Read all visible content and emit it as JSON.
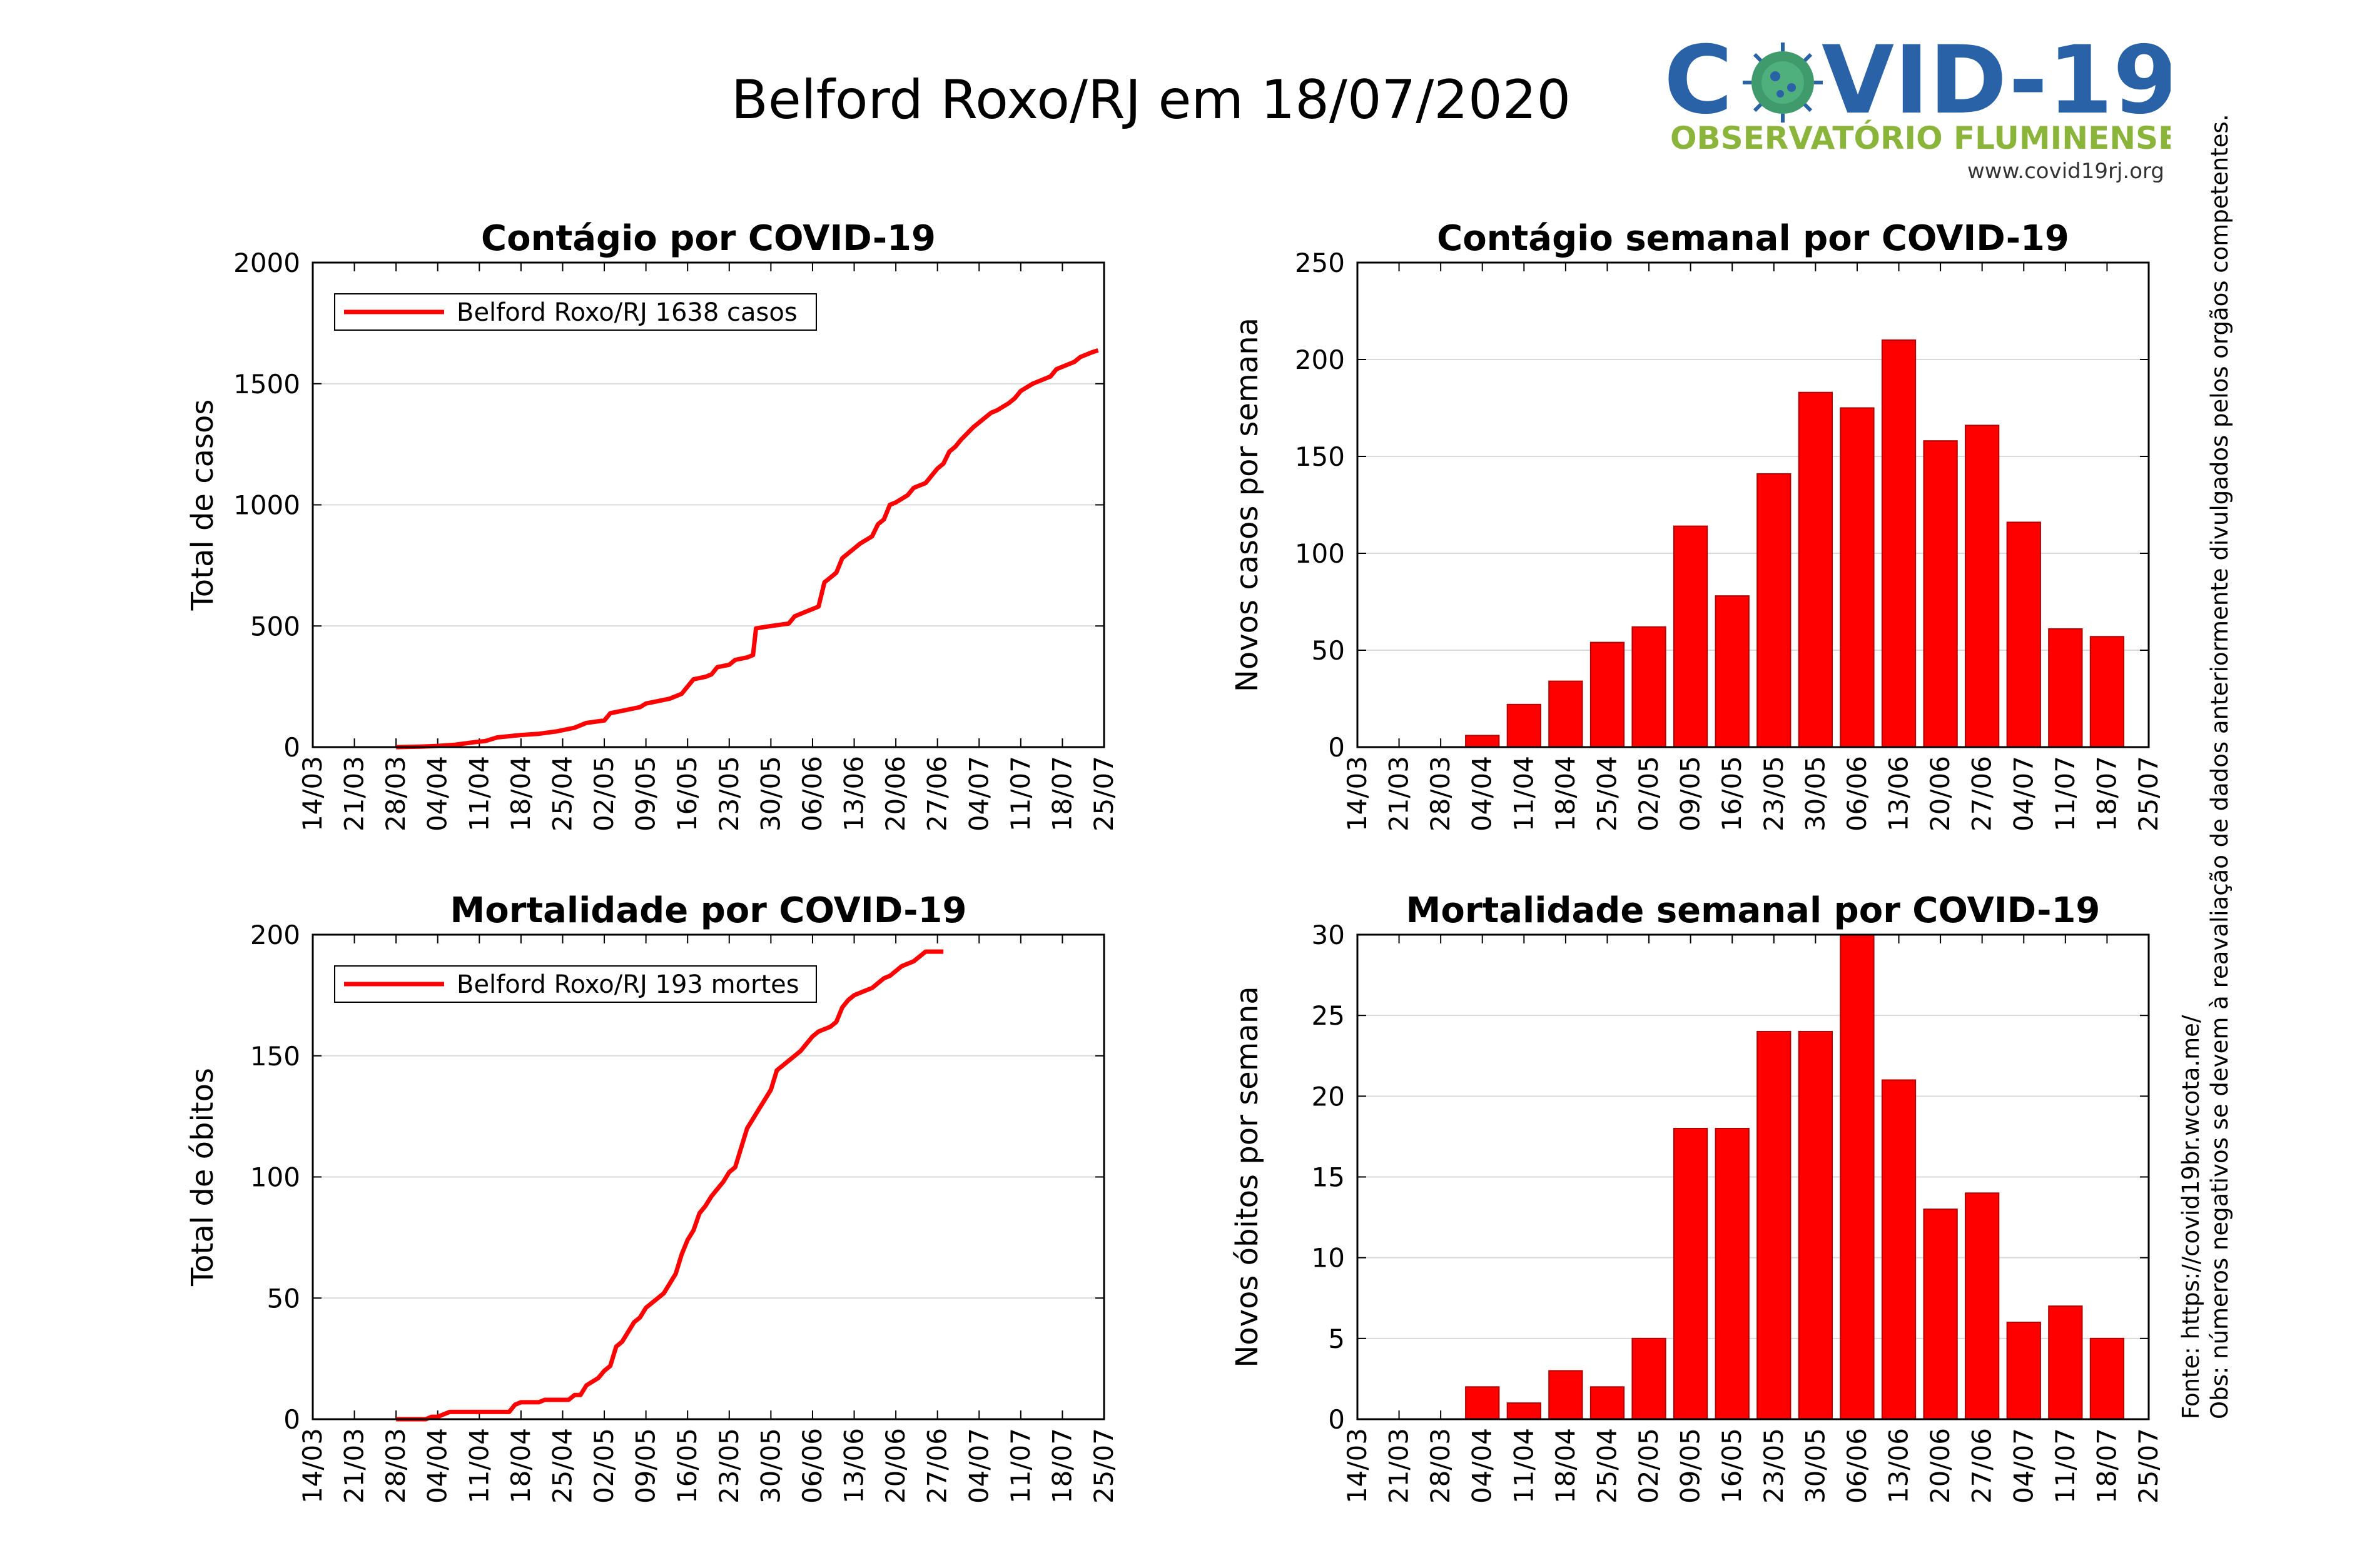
{
  "page": {
    "title": "Belford Roxo/RJ em 18/07/2020"
  },
  "logo": {
    "brand_left": "C",
    "brand_right": "VID-19",
    "subtitle": "OBSERVATÓRIO FLUMINENSE",
    "url": "www.covid19rj.org",
    "colors": {
      "blue": "#2a62a8",
      "green": "#8ab43a",
      "virus": "#3f9a6c"
    }
  },
  "side_note": {
    "source": "Fonte: https://covid19br.wcota.me/",
    "observation": "Obs: números negativos se devem à reavaliação de dados anteriormente divulgados pelos orgãos competentes."
  },
  "colors": {
    "series": "#ff0000",
    "bar_edge": "#b00000",
    "grid": "#d9d9d9"
  },
  "chart_data": [
    {
      "type": "line",
      "title": "Contágio por COVID-19",
      "ylabel": "Total de casos",
      "xlabel": "",
      "legend": {
        "label": "Belford Roxo/RJ  1638 casos",
        "position": "top-left"
      },
      "xticks": [
        "14/03",
        "21/03",
        "28/03",
        "04/04",
        "11/04",
        "18/04",
        "25/04",
        "02/05",
        "09/05",
        "16/05",
        "23/05",
        "30/05",
        "06/06",
        "13/06",
        "20/06",
        "27/06",
        "04/07",
        "11/07",
        "18/07",
        "25/07"
      ],
      "xlim": [
        0,
        133
      ],
      "ylim": [
        0,
        2000
      ],
      "yticks": [
        0,
        500,
        1000,
        1500,
        2000
      ],
      "grid": true,
      "series": [
        {
          "name": "Belford Roxo/RJ",
          "points": [
            [
              14,
              0
            ],
            [
              18,
              2
            ],
            [
              21,
              5
            ],
            [
              24,
              10
            ],
            [
              27,
              20
            ],
            [
              29,
              25
            ],
            [
              31,
              40
            ],
            [
              35,
              50
            ],
            [
              38,
              55
            ],
            [
              41,
              65
            ],
            [
              44,
              80
            ],
            [
              46,
              100
            ],
            [
              49,
              110
            ],
            [
              50,
              140
            ],
            [
              52,
              150
            ],
            [
              55,
              165
            ],
            [
              56,
              180
            ],
            [
              58,
              190
            ],
            [
              60,
              200
            ],
            [
              62,
              220
            ],
            [
              63,
              250
            ],
            [
              64,
              280
            ],
            [
              66,
              290
            ],
            [
              67,
              300
            ],
            [
              68,
              330
            ],
            [
              70,
              340
            ],
            [
              71,
              360
            ],
            [
              73,
              370
            ],
            [
              74,
              380
            ],
            [
              74.5,
              490
            ],
            [
              77,
              500
            ],
            [
              80,
              510
            ],
            [
              81,
              540
            ],
            [
              83,
              560
            ],
            [
              85,
              580
            ],
            [
              86,
              680
            ],
            [
              87,
              700
            ],
            [
              88,
              720
            ],
            [
              89,
              780
            ],
            [
              91,
              820
            ],
            [
              92,
              840
            ],
            [
              94,
              870
            ],
            [
              95,
              920
            ],
            [
              96,
              940
            ],
            [
              97,
              1000
            ],
            [
              98,
              1010
            ],
            [
              100,
              1040
            ],
            [
              101,
              1070
            ],
            [
              103,
              1090
            ],
            [
              104,
              1120
            ],
            [
              105,
              1150
            ],
            [
              106,
              1170
            ],
            [
              107,
              1220
            ],
            [
              108,
              1240
            ],
            [
              109,
              1270
            ],
            [
              111,
              1320
            ],
            [
              113,
              1360
            ],
            [
              114,
              1380
            ],
            [
              115,
              1390
            ],
            [
              117,
              1420
            ],
            [
              118,
              1440
            ],
            [
              119,
              1470
            ],
            [
              121,
              1500
            ],
            [
              123,
              1520
            ],
            [
              124,
              1530
            ],
            [
              125,
              1560
            ],
            [
              127,
              1580
            ],
            [
              128,
              1590
            ],
            [
              129,
              1610
            ],
            [
              130,
              1620
            ],
            [
              131,
              1630
            ],
            [
              132,
              1638
            ]
          ]
        }
      ]
    },
    {
      "type": "bar",
      "title": "Contágio semanal por COVID-19",
      "ylabel": "Novos casos por semana",
      "xlabel": "",
      "xticks": [
        "14/03",
        "21/03",
        "28/03",
        "04/04",
        "11/04",
        "18/04",
        "25/04",
        "02/05",
        "09/05",
        "16/05",
        "23/05",
        "30/05",
        "06/06",
        "13/06",
        "20/06",
        "27/06",
        "04/07",
        "11/07",
        "18/07",
        "25/07"
      ],
      "xlim": [
        0,
        133
      ],
      "ylim": [
        0,
        250
      ],
      "yticks": [
        0,
        50,
        100,
        150,
        200,
        250
      ],
      "grid": true,
      "bars": [
        {
          "x": "04/04",
          "value": 6
        },
        {
          "x": "11/04",
          "value": 22
        },
        {
          "x": "18/04",
          "value": 34
        },
        {
          "x": "25/04",
          "value": 54
        },
        {
          "x": "02/05",
          "value": 62
        },
        {
          "x": "09/05",
          "value": 114
        },
        {
          "x": "16/05",
          "value": 78
        },
        {
          "x": "23/05",
          "value": 141
        },
        {
          "x": "30/05",
          "value": 183
        },
        {
          "x": "06/06",
          "value": 175
        },
        {
          "x": "13/06",
          "value": 210
        },
        {
          "x": "20/06",
          "value": 158
        },
        {
          "x": "27/06",
          "value": 166
        },
        {
          "x": "04/07",
          "value": 116
        },
        {
          "x": "11/07",
          "value": 61
        },
        {
          "x": "18/07",
          "value": 57
        }
      ]
    },
    {
      "type": "line",
      "title": "Mortalidade por COVID-19",
      "ylabel": "Total de óbitos",
      "xlabel": "",
      "legend": {
        "label": "Belford Roxo/RJ  193 mortes",
        "position": "top-left"
      },
      "xticks": [
        "14/03",
        "21/03",
        "28/03",
        "04/04",
        "11/04",
        "18/04",
        "25/04",
        "02/05",
        "09/05",
        "16/05",
        "23/05",
        "30/05",
        "06/06",
        "13/06",
        "20/06",
        "27/06",
        "04/07",
        "11/07",
        "18/07",
        "25/07"
      ],
      "xlim": [
        0,
        133
      ],
      "ylim": [
        0,
        200
      ],
      "yticks": [
        0,
        50,
        100,
        150,
        200
      ],
      "grid": true,
      "series": [
        {
          "name": "Belford Roxo/RJ",
          "points": [
            [
              14,
              0
            ],
            [
              19,
              0
            ],
            [
              20,
              1
            ],
            [
              21,
              1
            ],
            [
              22,
              2
            ],
            [
              23,
              3
            ],
            [
              27,
              3
            ],
            [
              30,
              3
            ],
            [
              32,
              3
            ],
            [
              33,
              3
            ],
            [
              34,
              6
            ],
            [
              35,
              7
            ],
            [
              38,
              7
            ],
            [
              39,
              8
            ],
            [
              43,
              8
            ],
            [
              44,
              10
            ],
            [
              45,
              10
            ],
            [
              46,
              14
            ],
            [
              48,
              17
            ],
            [
              49,
              20
            ],
            [
              50,
              22
            ],
            [
              51,
              30
            ],
            [
              52,
              32
            ],
            [
              53,
              36
            ],
            [
              54,
              40
            ],
            [
              55,
              42
            ],
            [
              56,
              46
            ],
            [
              58,
              50
            ],
            [
              59,
              52
            ],
            [
              60,
              56
            ],
            [
              61,
              60
            ],
            [
              62,
              68
            ],
            [
              63,
              74
            ],
            [
              64,
              78
            ],
            [
              65,
              85
            ],
            [
              66,
              88
            ],
            [
              67,
              92
            ],
            [
              68,
              95
            ],
            [
              69,
              98
            ],
            [
              70,
              102
            ],
            [
              71,
              104
            ],
            [
              72,
              112
            ],
            [
              73,
              120
            ],
            [
              74,
              124
            ],
            [
              75,
              128
            ],
            [
              76,
              132
            ],
            [
              77,
              136
            ],
            [
              78,
              144
            ],
            [
              79,
              146
            ],
            [
              80,
              148
            ],
            [
              81,
              150
            ],
            [
              82,
              152
            ],
            [
              83,
              155
            ],
            [
              84,
              158
            ],
            [
              85,
              160
            ],
            [
              86,
              161
            ],
            [
              87,
              162
            ],
            [
              88,
              164
            ],
            [
              89,
              170
            ],
            [
              90,
              173
            ],
            [
              91,
              175
            ],
            [
              92,
              176
            ],
            [
              93,
              177
            ],
            [
              94,
              178
            ],
            [
              95,
              180
            ],
            [
              96,
              182
            ],
            [
              97,
              183
            ],
            [
              98,
              185
            ],
            [
              99,
              187
            ],
            [
              100,
              188
            ],
            [
              101,
              189
            ],
            [
              103,
              193
            ],
            [
              106,
              193
            ]
          ]
        }
      ]
    },
    {
      "type": "bar",
      "title": "Mortalidade semanal por COVID-19",
      "ylabel": "Novos óbitos por semana",
      "xlabel": "",
      "xticks": [
        "14/03",
        "21/03",
        "28/03",
        "04/04",
        "11/04",
        "18/04",
        "25/04",
        "02/05",
        "09/05",
        "16/05",
        "23/05",
        "30/05",
        "06/06",
        "13/06",
        "20/06",
        "27/06",
        "04/07",
        "11/07",
        "18/07",
        "25/07"
      ],
      "xlim": [
        0,
        133
      ],
      "ylim": [
        0,
        30
      ],
      "yticks": [
        0,
        5,
        10,
        15,
        20,
        25,
        30
      ],
      "grid": true,
      "bars": [
        {
          "x": "04/04",
          "value": 2
        },
        {
          "x": "11/04",
          "value": 1
        },
        {
          "x": "18/04",
          "value": 3
        },
        {
          "x": "25/04",
          "value": 2
        },
        {
          "x": "02/05",
          "value": 5
        },
        {
          "x": "09/05",
          "value": 18
        },
        {
          "x": "16/05",
          "value": 18
        },
        {
          "x": "23/05",
          "value": 24
        },
        {
          "x": "30/05",
          "value": 24
        },
        {
          "x": "06/06",
          "value": 30
        },
        {
          "x": "13/06",
          "value": 21
        },
        {
          "x": "20/06",
          "value": 13
        },
        {
          "x": "27/06",
          "value": 14
        },
        {
          "x": "04/07",
          "value": 6
        },
        {
          "x": "11/07",
          "value": 7
        },
        {
          "x": "18/07",
          "value": 5
        }
      ]
    }
  ]
}
